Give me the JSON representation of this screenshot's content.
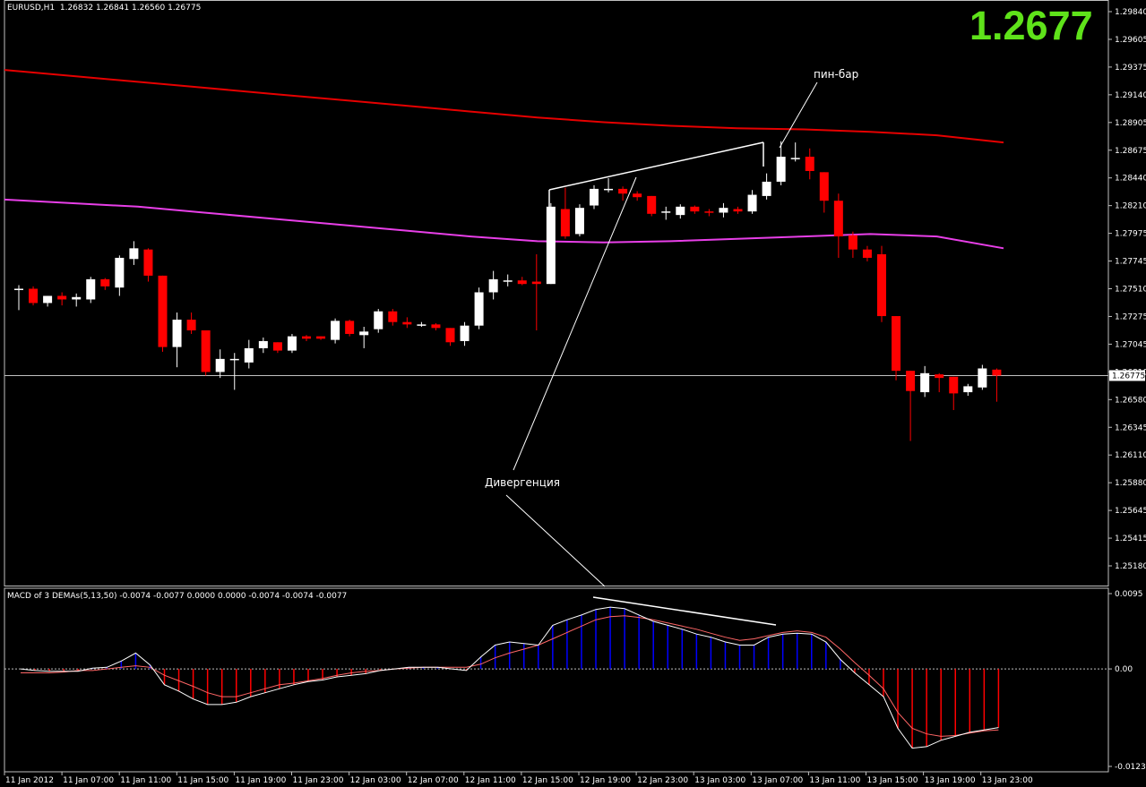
{
  "symbol_line": {
    "symbol": "EURUSD,H1",
    "ohlc": "1.26832 1.26841 1.26560 1.26775"
  },
  "big_price": "1.2677",
  "current_price_label": "1.26775",
  "annotations": {
    "pin_bar": "пин-бар",
    "divergence": "Дивергенция"
  },
  "colors": {
    "background": "#000000",
    "bull_candle": "#ffffff",
    "bear_candle": "#ff0000",
    "ma_slow": "#e60000",
    "ma_fast": "#e83fe8",
    "macd_pos_hist": "#0000ff",
    "macd_neg_hist": "#ff0000",
    "macd_signal": "#ff6666",
    "macd_line": "#ffffff",
    "big_price": "#5fe31a"
  },
  "macd_title": "MACD of 3 DEMAs(5,13,50) -0.0074 -0.0077 0.0000 0.0000 -0.0074 -0.0074 -0.0077",
  "chart_data": [
    {
      "type": "candlestick",
      "title": "EURUSD,H1",
      "ylim": [
        1.2518,
        1.2984
      ],
      "y_ticks": [
        "1.29840",
        "1.29605",
        "1.29375",
        "1.29140",
        "1.28905",
        "1.28675",
        "1.28440",
        "1.28210",
        "1.27975",
        "1.27745",
        "1.27510",
        "1.27275",
        "1.27045",
        "1.26810",
        "1.26580",
        "1.26345",
        "1.26110",
        "1.25880",
        "1.25645",
        "1.25415",
        "1.25180"
      ],
      "x_tick_labels": [
        "11 Jan 2012",
        "11 Jan 07:00",
        "11 Jan 11:00",
        "11 Jan 15:00",
        "11 Jan 19:00",
        "11 Jan 23:00",
        "12 Jan 03:00",
        "12 Jan 07:00",
        "12 Jan 11:00",
        "12 Jan 15:00",
        "12 Jan 19:00",
        "12 Jan 23:00",
        "13 Jan 03:00",
        "13 Jan 07:00",
        "13 Jan 11:00",
        "13 Jan 15:00",
        "13 Jan 19:00",
        "13 Jan 23:00"
      ],
      "candles": [
        {
          "o": 1.2751,
          "h": 1.2754,
          "l": 1.2733,
          "c": 1.2751
        },
        {
          "o": 1.2751,
          "h": 1.2753,
          "l": 1.2737,
          "c": 1.2739
        },
        {
          "o": 1.2739,
          "h": 1.2745,
          "l": 1.2736,
          "c": 1.2745
        },
        {
          "o": 1.2745,
          "h": 1.2748,
          "l": 1.2737,
          "c": 1.2742
        },
        {
          "o": 1.2742,
          "h": 1.2747,
          "l": 1.2736,
          "c": 1.2744
        },
        {
          "o": 1.2742,
          "h": 1.2761,
          "l": 1.2739,
          "c": 1.2759
        },
        {
          "o": 1.2759,
          "h": 1.276,
          "l": 1.275,
          "c": 1.2753
        },
        {
          "o": 1.2752,
          "h": 1.2779,
          "l": 1.2745,
          "c": 1.2777
        },
        {
          "o": 1.2776,
          "h": 1.2791,
          "l": 1.2771,
          "c": 1.2785
        },
        {
          "o": 1.2784,
          "h": 1.2785,
          "l": 1.2757,
          "c": 1.2762
        },
        {
          "o": 1.2762,
          "h": 1.2762,
          "l": 1.2698,
          "c": 1.2702
        },
        {
          "o": 1.2702,
          "h": 1.2731,
          "l": 1.2685,
          "c": 1.2725
        },
        {
          "o": 1.2725,
          "h": 1.2731,
          "l": 1.2713,
          "c": 1.2716
        },
        {
          "o": 1.2716,
          "h": 1.2716,
          "l": 1.2678,
          "c": 1.2681
        },
        {
          "o": 1.2681,
          "h": 1.27,
          "l": 1.2676,
          "c": 1.2692
        },
        {
          "o": 1.2692,
          "h": 1.2697,
          "l": 1.2666,
          "c": 1.2692
        },
        {
          "o": 1.2689,
          "h": 1.2708,
          "l": 1.2684,
          "c": 1.2701
        },
        {
          "o": 1.2701,
          "h": 1.271,
          "l": 1.2697,
          "c": 1.2707
        },
        {
          "o": 1.2706,
          "h": 1.2706,
          "l": 1.2697,
          "c": 1.2699
        },
        {
          "o": 1.2699,
          "h": 1.2713,
          "l": 1.2697,
          "c": 1.2711
        },
        {
          "o": 1.2711,
          "h": 1.2712,
          "l": 1.2707,
          "c": 1.2709
        },
        {
          "o": 1.2711,
          "h": 1.2711,
          "l": 1.2708,
          "c": 1.2709
        },
        {
          "o": 1.2708,
          "h": 1.2726,
          "l": 1.2705,
          "c": 1.2724
        },
        {
          "o": 1.2724,
          "h": 1.2725,
          "l": 1.2711,
          "c": 1.2713
        },
        {
          "o": 1.2712,
          "h": 1.2719,
          "l": 1.2701,
          "c": 1.2715
        },
        {
          "o": 1.2717,
          "h": 1.2734,
          "l": 1.2714,
          "c": 1.2732
        },
        {
          "o": 1.2732,
          "h": 1.2734,
          "l": 1.272,
          "c": 1.2723
        },
        {
          "o": 1.2723,
          "h": 1.2727,
          "l": 1.2718,
          "c": 1.2721
        },
        {
          "o": 1.2721,
          "h": 1.2723,
          "l": 1.2719,
          "c": 1.2721
        },
        {
          "o": 1.2721,
          "h": 1.2722,
          "l": 1.2716,
          "c": 1.2718
        },
        {
          "o": 1.2718,
          "h": 1.2718,
          "l": 1.2703,
          "c": 1.2706
        },
        {
          "o": 1.2707,
          "h": 1.2723,
          "l": 1.2703,
          "c": 1.272
        },
        {
          "o": 1.272,
          "h": 1.2752,
          "l": 1.2717,
          "c": 1.2748
        },
        {
          "o": 1.2748,
          "h": 1.2766,
          "l": 1.2742,
          "c": 1.2759
        },
        {
          "o": 1.2757,
          "h": 1.2763,
          "l": 1.2753,
          "c": 1.2758
        },
        {
          "o": 1.2758,
          "h": 1.2761,
          "l": 1.2754,
          "c": 1.2755
        },
        {
          "o": 1.2757,
          "h": 1.278,
          "l": 1.2716,
          "c": 1.2755
        },
        {
          "o": 1.2755,
          "h": 1.2823,
          "l": 1.2755,
          "c": 1.282
        },
        {
          "o": 1.2818,
          "h": 1.2836,
          "l": 1.2793,
          "c": 1.2795
        },
        {
          "o": 1.2797,
          "h": 1.2822,
          "l": 1.2795,
          "c": 1.2819
        },
        {
          "o": 1.2821,
          "h": 1.2838,
          "l": 1.2818,
          "c": 1.2835
        },
        {
          "o": 1.2835,
          "h": 1.2844,
          "l": 1.2832,
          "c": 1.2835
        },
        {
          "o": 1.2835,
          "h": 1.2837,
          "l": 1.2825,
          "c": 1.2831
        },
        {
          "o": 1.2831,
          "h": 1.2833,
          "l": 1.2825,
          "c": 1.2828
        },
        {
          "o": 1.2829,
          "h": 1.2829,
          "l": 1.2812,
          "c": 1.2814
        },
        {
          "o": 1.2815,
          "h": 1.282,
          "l": 1.2809,
          "c": 1.2816
        },
        {
          "o": 1.2813,
          "h": 1.2822,
          "l": 1.281,
          "c": 1.282
        },
        {
          "o": 1.282,
          "h": 1.2821,
          "l": 1.2814,
          "c": 1.2816
        },
        {
          "o": 1.2816,
          "h": 1.2818,
          "l": 1.2812,
          "c": 1.2815
        },
        {
          "o": 1.2815,
          "h": 1.2823,
          "l": 1.2811,
          "c": 1.2819
        },
        {
          "o": 1.2818,
          "h": 1.282,
          "l": 1.2814,
          "c": 1.2816
        },
        {
          "o": 1.2816,
          "h": 1.2834,
          "l": 1.2814,
          "c": 1.283
        },
        {
          "o": 1.2829,
          "h": 1.2848,
          "l": 1.2826,
          "c": 1.2841
        },
        {
          "o": 1.2841,
          "h": 1.2875,
          "l": 1.2838,
          "c": 1.2862
        },
        {
          "o": 1.2861,
          "h": 1.2874,
          "l": 1.2858,
          "c": 1.2861
        },
        {
          "o": 1.2862,
          "h": 1.2869,
          "l": 1.2843,
          "c": 1.285
        },
        {
          "o": 1.2849,
          "h": 1.2849,
          "l": 1.2815,
          "c": 1.2825
        },
        {
          "o": 1.2825,
          "h": 1.2831,
          "l": 1.2777,
          "c": 1.2795
        },
        {
          "o": 1.2796,
          "h": 1.2799,
          "l": 1.2777,
          "c": 1.2784
        },
        {
          "o": 1.2784,
          "h": 1.2787,
          "l": 1.2774,
          "c": 1.2777
        },
        {
          "o": 1.278,
          "h": 1.2787,
          "l": 1.2723,
          "c": 1.2728
        },
        {
          "o": 1.2728,
          "h": 1.2728,
          "l": 1.2674,
          "c": 1.2682
        },
        {
          "o": 1.2682,
          "h": 1.2682,
          "l": 1.2623,
          "c": 1.2665
        },
        {
          "o": 1.2664,
          "h": 1.2686,
          "l": 1.266,
          "c": 1.268
        },
        {
          "o": 1.2679,
          "h": 1.268,
          "l": 1.2664,
          "c": 1.2676
        },
        {
          "o": 1.2677,
          "h": 1.2677,
          "l": 1.2649,
          "c": 1.2663
        },
        {
          "o": 1.2664,
          "h": 1.2671,
          "l": 1.2661,
          "c": 1.2669
        },
        {
          "o": 1.2668,
          "h": 1.2687,
          "l": 1.2666,
          "c": 1.2684
        },
        {
          "o": 1.2683,
          "h": 1.2684,
          "l": 1.2656,
          "c": 1.2678
        }
      ],
      "ma_slow": [
        1.2935,
        1.293,
        1.2925,
        1.292,
        1.2915,
        1.291,
        1.2905,
        1.29,
        1.2895,
        1.2891,
        1.2888,
        1.2886,
        1.2885,
        1.2883,
        1.288,
        1.2874
      ],
      "ma_fast": [
        1.2826,
        1.2823,
        1.282,
        1.2815,
        1.281,
        1.2805,
        1.28,
        1.2795,
        1.2791,
        1.279,
        1.2791,
        1.2793,
        1.2795,
        1.2797,
        1.2795,
        1.2785
      ]
    },
    {
      "type": "bar",
      "title": "MACD of 3 DEMAs(5,13,50)",
      "ylim": [
        -0.0123,
        0.0095
      ],
      "y_tick_labels": [
        "0.0095",
        "0.00",
        "-0.0123"
      ],
      "zero_line": true,
      "series": [
        {
          "name": "histogram",
          "values": [
            0.0,
            -0.0002,
            -0.0003,
            -0.0003,
            -0.0003,
            0.0001,
            0.0002,
            0.001,
            0.002,
            0.0005,
            -0.002,
            -0.0028,
            -0.0038,
            -0.0045,
            -0.0045,
            -0.0042,
            -0.0035,
            -0.003,
            -0.0025,
            -0.002,
            -0.0016,
            -0.0014,
            -0.001,
            -0.0008,
            -0.0006,
            -0.0002,
            0.0,
            0.0002,
            0.0002,
            0.0002,
            0.0,
            -0.0002,
            0.0015,
            0.003,
            0.0034,
            0.0032,
            0.003,
            0.0055,
            0.0062,
            0.0068,
            0.0075,
            0.0078,
            0.0076,
            0.0068,
            0.006,
            0.0055,
            0.005,
            0.0044,
            0.004,
            0.0034,
            0.003,
            0.003,
            0.004,
            0.0044,
            0.0045,
            0.0044,
            0.0034,
            0.0012,
            -0.0005,
            -0.002,
            -0.0035,
            -0.0075,
            -0.01,
            -0.0098,
            -0.009,
            -0.0085,
            -0.008,
            -0.0077,
            -0.0074
          ]
        },
        {
          "name": "signal",
          "values": [
            -0.0005,
            -0.0005,
            -0.0005,
            -0.0004,
            -0.0002,
            -0.0002,
            0.0,
            0.0002,
            0.0004,
            0.0002,
            -0.0008,
            -0.0015,
            -0.0022,
            -0.003,
            -0.0035,
            -0.0035,
            -0.003,
            -0.0025,
            -0.002,
            -0.0018,
            -0.0015,
            -0.0012,
            -0.0008,
            -0.0005,
            -0.0003,
            -0.0002,
            0.0,
            0.0001,
            0.0002,
            0.0002,
            0.0002,
            0.0002,
            0.0006,
            0.0014,
            0.002,
            0.0025,
            0.003,
            0.0038,
            0.0046,
            0.0054,
            0.0062,
            0.0066,
            0.0067,
            0.0065,
            0.0062,
            0.0058,
            0.0054,
            0.005,
            0.0045,
            0.004,
            0.0036,
            0.0038,
            0.0042,
            0.0046,
            0.0048,
            0.0046,
            0.004,
            0.0025,
            0.0008,
            -0.0008,
            -0.0025,
            -0.0055,
            -0.0075,
            -0.0082,
            -0.0085,
            -0.0084,
            -0.0081,
            -0.0078,
            -0.0077
          ]
        }
      ]
    }
  ]
}
